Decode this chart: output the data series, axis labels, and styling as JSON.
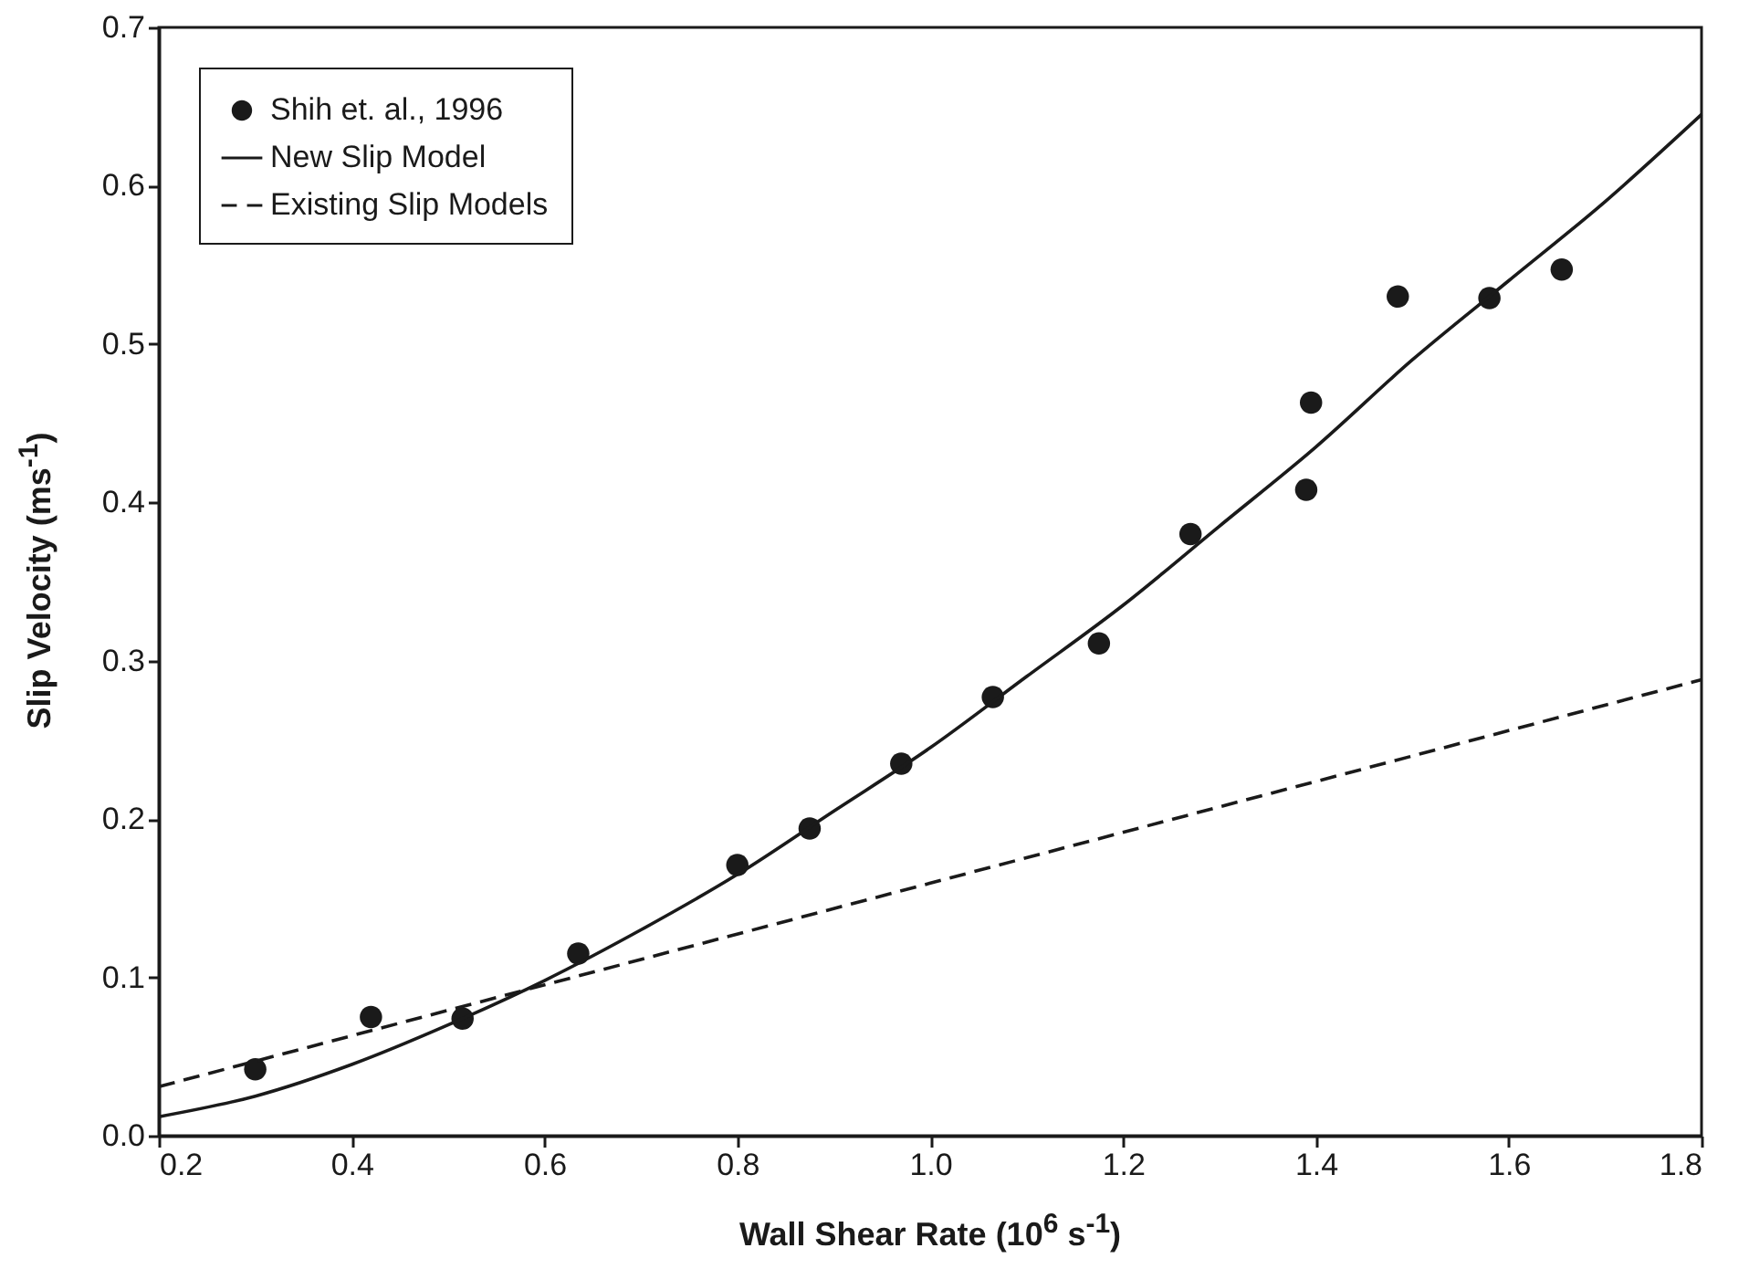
{
  "chart_data": {
    "type": "scatter",
    "xlabel": "Wall Shear Rate (10$^{6}$ s$^{-1}$)",
    "ylabel": "Slip Velocity (ms$^{-1}$)",
    "xlim": [
      0.2,
      1.8
    ],
    "ylim": [
      0,
      0.7
    ],
    "xticks": [
      0.2,
      0.4,
      0.6,
      0.8,
      {
        "value": 1,
        "label": "1.0"
      },
      1.2,
      1.4,
      1.6,
      1.8
    ],
    "yticks": [
      {
        "value": 0,
        "label": "0.0"
      },
      0.1,
      0.2,
      0.3,
      0.4,
      0.5,
      0.6,
      0.7
    ],
    "legend": "top left",
    "grid": false,
    "series": [
      {
        "name": "Shih et. al., 1996",
        "marker": "circle",
        "color": "#1a1a1a",
        "x": [
          0.3,
          0.42,
          0.515,
          0.635,
          0.8,
          0.875,
          0.97,
          1.065,
          1.175,
          1.27,
          1.39,
          1.395,
          1.485,
          1.58,
          1.655
        ],
        "values": [
          0.042,
          0.075,
          0.074,
          0.115,
          0.171,
          0.194,
          0.235,
          0.277,
          0.311,
          0.38,
          0.408,
          0.463,
          0.53,
          0.529,
          0.547
        ]
      },
      {
        "name": "New Slip Model",
        "type": "line",
        "line_style": "solid",
        "color": "#1a1a1a",
        "x": [
          0.2,
          0.3,
          0.4,
          0.5,
          0.6,
          0.7,
          0.8,
          0.9,
          1.0,
          1.1,
          1.2,
          1.3,
          1.4,
          1.5,
          1.6,
          1.7,
          1.8
        ],
        "values": [
          0.012,
          0.025,
          0.045,
          0.07,
          0.098,
          0.13,
          0.165,
          0.205,
          0.245,
          0.29,
          0.335,
          0.385,
          0.435,
          0.49,
          0.54,
          0.59,
          0.645
        ]
      },
      {
        "name": "Existing Slip Models",
        "type": "line",
        "line_style": "dashed",
        "color": "#1a1a1a",
        "x": [
          0.2,
          1.8
        ],
        "values": [
          0.031,
          0.288
        ]
      }
    ]
  }
}
